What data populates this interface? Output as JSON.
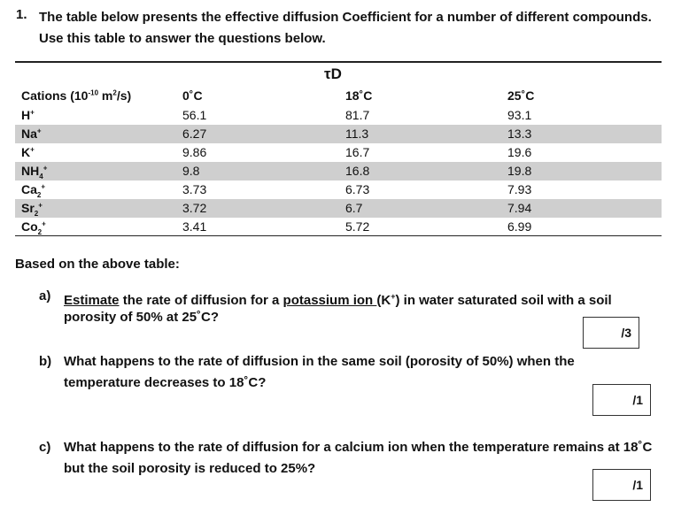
{
  "question": {
    "number": "1.",
    "text": "The table below presents the effective diffusion Coefficient for a number of different compounds. Use this table to answer the questions below."
  },
  "table": {
    "group_header": "τD",
    "headers": [
      "Cations (10",
      "-10",
      " m",
      "2",
      "/s)",
      "0˚C",
      "18˚C",
      "25˚C"
    ],
    "rows": [
      {
        "cation": "H",
        "sub": "",
        "sup": "+",
        "v0": "56.1",
        "v18": "81.7",
        "v25": "93.1",
        "shaded": false
      },
      {
        "cation": "Na",
        "sub": "",
        "sup": "+",
        "v0": "6.27",
        "v18": "11.3",
        "v25": "13.3",
        "shaded": true
      },
      {
        "cation": "K",
        "sub": "",
        "sup": "+",
        "v0": "9.86",
        "v18": "16.7",
        "v25": "19.6",
        "shaded": false
      },
      {
        "cation": "NH",
        "sub": "4",
        "sup": "+",
        "v0": "9.8",
        "v18": "16.8",
        "v25": "19.8",
        "shaded": true
      },
      {
        "cation": "Ca",
        "sub": "2",
        "sup": "+",
        "v0": "3.73",
        "v18": "6.73",
        "v25": "7.93",
        "shaded": false
      },
      {
        "cation": "Sr",
        "sub": "2",
        "sup": "+",
        "v0": "3.72",
        "v18": "6.7",
        "v25": "7.94",
        "shaded": true
      },
      {
        "cation": "Co",
        "sub": "2",
        "sup": "+",
        "v0": "3.41",
        "v18": "5.72",
        "v25": "6.99",
        "shaded": false
      }
    ]
  },
  "intro": "Based on the above table:",
  "parts": {
    "a": {
      "label": "a)",
      "w1": "Estimate",
      "w2": " the rate of diffusion for a ",
      "w3": "potassium ion ",
      "w4": "(K",
      "w4sup": "+",
      "w5": ") in water saturated soil with a soil",
      "line2": "porosity of 50% at 25˚C?",
      "marks": "/3"
    },
    "b": {
      "label": "b)",
      "line1": "What happens to the rate of diffusion in the same soil (porosity of 50%) when the",
      "line2": "temperature decreases to 18˚C?",
      "marks": "/1"
    },
    "c": {
      "label": "c)",
      "line1": "What happens to the rate of diffusion for a calcium ion when the temperature remains at 18˚C",
      "line2": "but the soil porosity is reduced to 25%?",
      "marks": "/1"
    }
  }
}
